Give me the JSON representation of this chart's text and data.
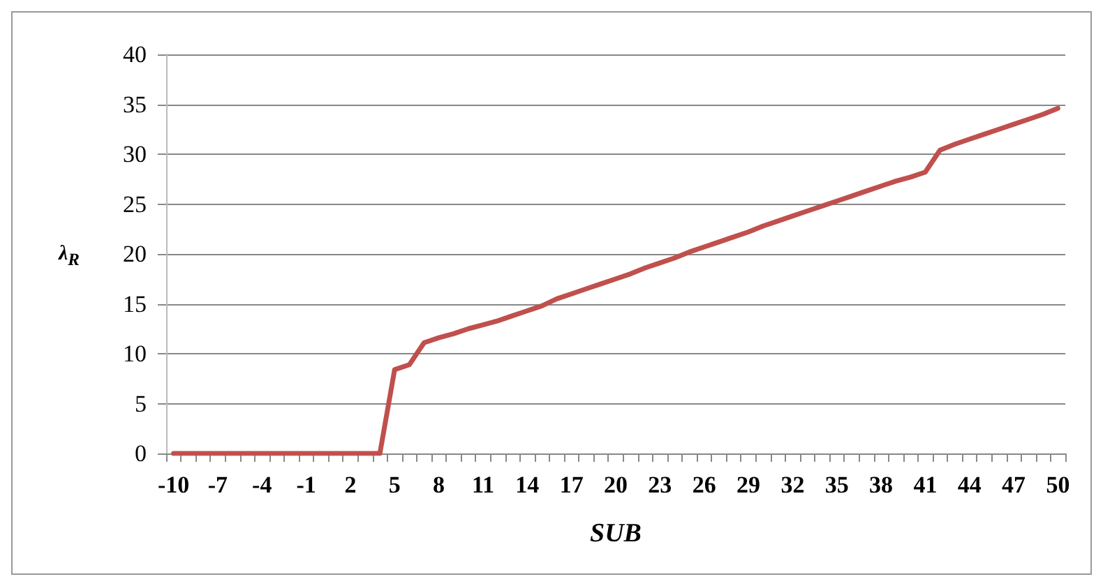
{
  "chart_data": {
    "type": "line",
    "xlabel": "SUB",
    "ylabel": "λ$_{R}$",
    "categories": [
      "-10",
      null,
      null,
      "-7",
      null,
      null,
      "-4",
      null,
      null,
      "-1",
      null,
      null,
      "2",
      null,
      null,
      "5",
      null,
      null,
      "8",
      null,
      null,
      "11",
      null,
      null,
      "14",
      null,
      null,
      "17",
      null,
      null,
      "20",
      null,
      null,
      "23",
      null,
      null,
      "26",
      null,
      null,
      "29",
      null,
      null,
      "32",
      null,
      null,
      "35",
      null,
      null,
      "38",
      null,
      null,
      "41",
      null,
      null,
      "44",
      null,
      null,
      "47",
      null,
      null,
      "50"
    ],
    "series": [
      {
        "color": "#c0504d",
        "values": [
          0,
          0,
          0,
          0,
          0,
          0,
          0,
          0,
          0,
          0,
          0,
          0,
          0,
          0,
          0,
          8.4,
          8.9,
          11.1,
          11.6,
          12.0,
          12.5,
          12.9,
          13.3,
          13.8,
          14.3,
          14.8,
          15.5,
          16.0,
          16.5,
          17.0,
          17.5,
          18.0,
          18.6,
          19.1,
          19.6,
          20.2,
          20.7,
          21.2,
          21.7,
          22.2,
          22.8,
          23.3,
          23.8,
          24.3,
          24.8,
          25.3,
          25.8,
          26.3,
          26.8,
          27.3,
          27.7,
          28.2,
          30.4,
          31.0,
          31.5,
          32.0,
          32.5,
          33.0,
          33.5,
          34.0,
          34.6
        ]
      }
    ],
    "ylim": [
      0,
      40
    ],
    "yticks": [
      0,
      5,
      10,
      15,
      20,
      25,
      30,
      35,
      40
    ],
    "grid": "y"
  }
}
